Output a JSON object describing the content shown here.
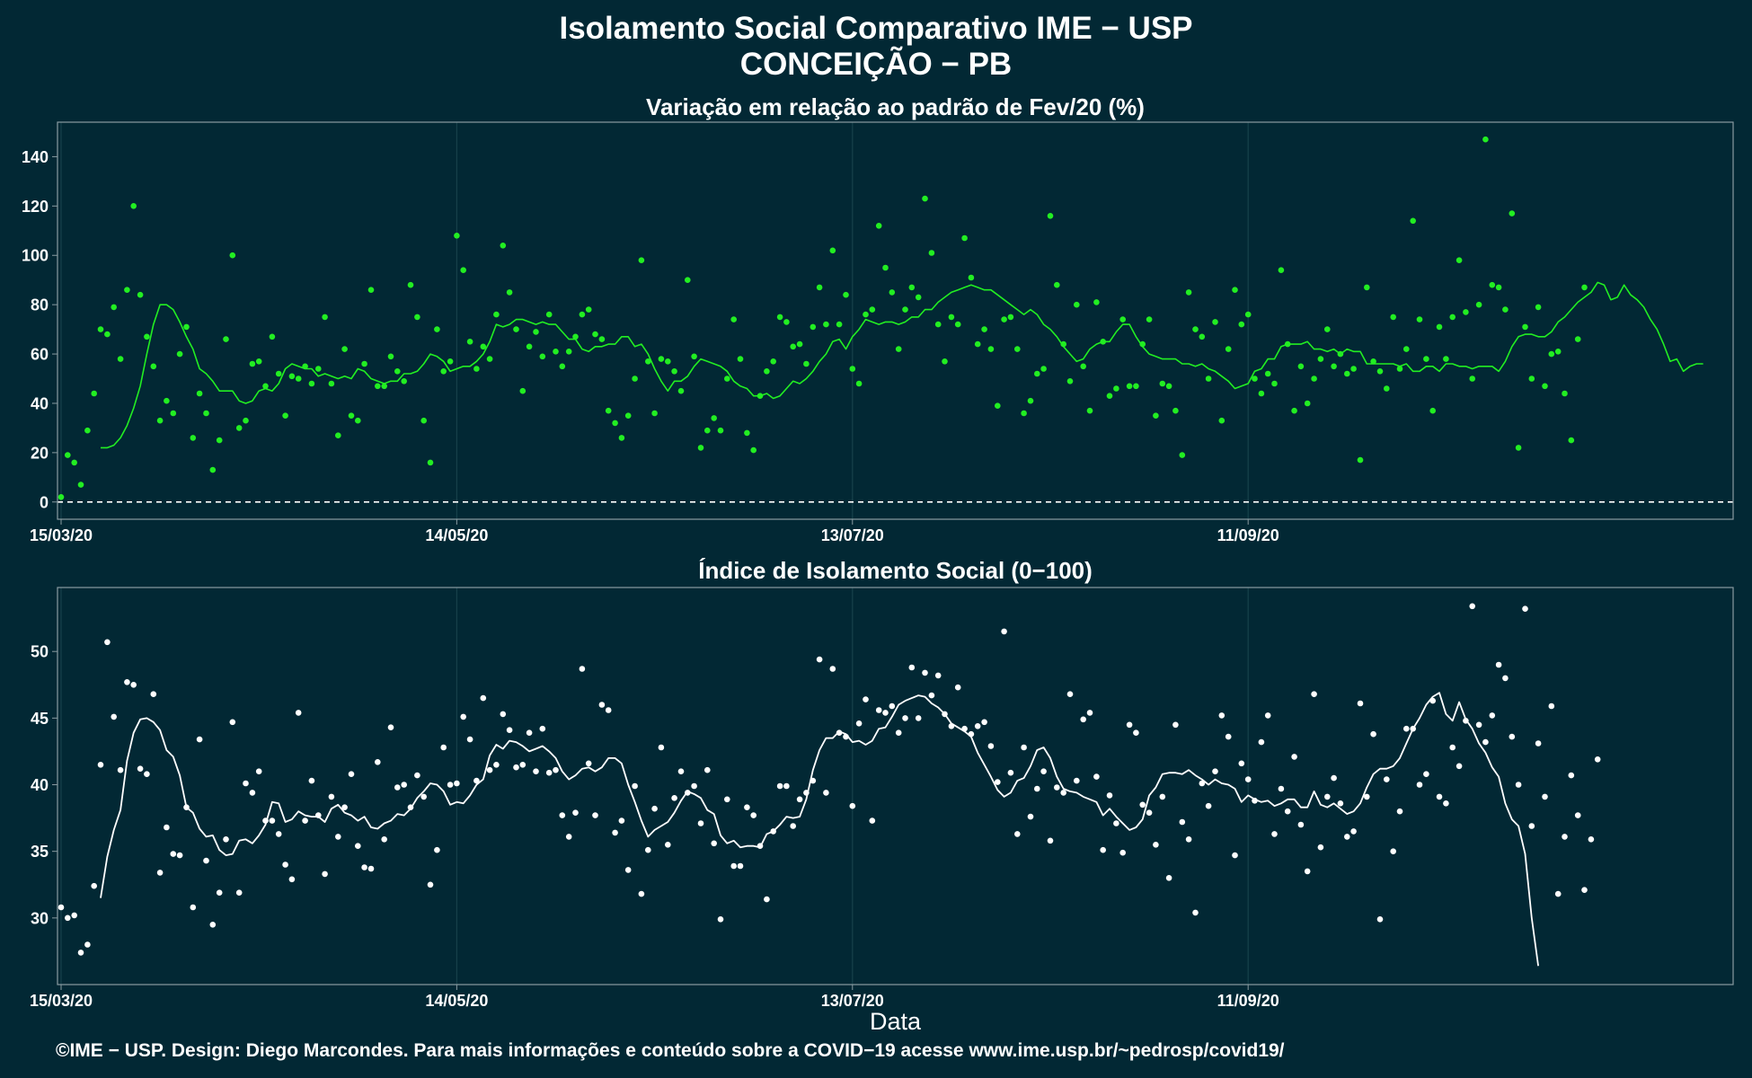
{
  "figure": {
    "title": "Isolamento Social Comparativo IME − USP",
    "subtitle": "CONCEIÇÃO − PB",
    "xlabel": "Data",
    "footer": "©IME − USP. Design: Diego Marcondes. Para mais informações e conteúdo sobre a COVID−19 acesse www.ime.usp.br/~pedrosp/covid19/",
    "colors": {
      "background": "#022834",
      "panel_border": "#8a9ba1",
      "grid": "#17414b",
      "series_top": "#22ee22",
      "series_bottom": "#ffffff"
    }
  },
  "chart_data": [
    {
      "type": "scatter",
      "title": "Variação em relação ao padrão de Fev/20 (%)",
      "x_start": "15/03/20",
      "x_end": "23/11/20",
      "xticks": [
        "15/03/20",
        "14/05/20",
        "13/07/20",
        "11/09/20"
      ],
      "yticks": [
        0,
        20,
        40,
        60,
        80,
        100,
        120,
        140
      ],
      "ylim": [
        -7,
        154
      ],
      "reference_line": 0,
      "grid": true,
      "points": [
        2,
        19,
        16,
        7,
        29,
        44,
        70,
        68,
        79,
        58,
        86,
        120,
        84,
        67,
        55,
        33,
        41,
        36,
        60,
        71,
        26,
        44,
        36,
        13,
        25,
        66,
        100,
        30,
        33,
        56,
        57,
        47,
        67,
        52,
        35,
        51,
        50,
        55,
        48,
        54,
        75,
        48,
        27,
        62,
        35,
        33,
        56,
        86,
        47,
        47,
        59,
        53,
        49,
        88,
        75,
        33,
        16,
        70,
        53,
        57,
        108,
        94,
        65,
        54,
        63,
        58,
        76,
        104,
        85,
        70,
        45,
        63,
        69,
        59,
        76,
        61,
        55,
        61,
        67,
        76,
        78,
        68,
        66,
        37,
        32,
        26,
        35,
        50,
        98,
        57,
        36,
        58,
        57,
        53,
        45,
        90,
        59,
        22,
        29,
        34,
        29,
        50,
        74,
        58,
        28,
        21,
        43,
        53,
        57,
        75,
        73,
        63,
        64,
        56,
        71,
        87,
        72,
        102,
        72,
        84,
        54,
        48,
        76,
        78,
        112,
        95,
        85,
        62,
        78,
        87,
        83,
        123,
        101,
        72,
        57,
        75,
        72,
        107,
        91,
        64,
        70,
        62,
        39,
        74,
        75,
        62,
        36,
        41,
        52,
        54,
        116,
        88,
        64,
        49,
        80,
        55,
        37,
        81,
        65,
        43,
        46,
        74,
        47,
        47,
        64,
        74,
        35,
        48,
        47,
        37,
        19,
        85,
        70,
        67,
        50,
        73,
        33,
        62,
        86,
        72,
        76,
        50,
        44,
        52,
        48,
        94,
        64,
        37,
        55,
        40,
        50,
        58,
        70,
        55,
        60,
        52,
        54,
        17,
        87,
        57,
        53,
        46,
        75,
        54,
        62,
        114,
        74,
        58,
        37,
        71,
        58,
        75,
        98,
        77,
        50,
        80,
        147,
        88,
        87,
        78,
        117,
        22,
        71,
        50,
        79,
        47,
        60,
        61,
        44,
        25,
        66,
        87
      ],
      "moving_average": [
        22,
        22,
        23,
        26,
        31,
        38,
        47,
        60,
        72,
        80,
        80,
        78,
        73,
        67,
        62,
        54,
        52,
        49,
        45,
        45,
        45,
        41,
        40,
        41,
        45,
        46,
        45,
        48,
        54,
        56,
        55,
        54,
        54,
        51,
        52,
        51,
        50,
        51,
        50,
        54,
        53,
        50,
        49,
        48,
        49,
        49,
        52,
        52,
        53,
        56,
        60,
        59,
        57,
        53,
        54,
        55,
        55,
        57,
        60,
        65,
        72,
        71,
        72,
        74,
        74,
        73,
        72,
        73,
        72,
        72,
        69,
        66,
        66,
        62,
        61,
        63,
        63,
        64,
        64,
        67,
        67,
        63,
        64,
        60,
        54,
        49,
        45,
        49,
        49,
        51,
        55,
        58,
        57,
        56,
        55,
        53,
        49,
        47,
        46,
        43,
        43,
        44,
        42,
        43,
        46,
        49,
        48,
        50,
        53,
        57,
        60,
        65,
        66,
        62,
        67,
        70,
        74,
        73,
        72,
        73,
        73,
        72,
        73,
        75,
        75,
        78,
        78,
        81,
        83,
        85,
        86,
        87,
        88,
        87,
        86,
        86,
        84,
        82,
        80,
        78,
        76,
        78,
        76,
        72,
        70,
        67,
        63,
        60,
        57,
        58,
        62,
        64,
        65,
        65,
        69,
        72,
        72,
        67,
        63,
        60,
        59,
        58,
        58,
        58,
        56,
        56,
        55,
        56,
        54,
        53,
        51,
        49,
        46,
        47,
        48,
        53,
        54,
        58,
        58,
        63,
        64,
        64,
        64,
        65,
        62,
        62,
        61,
        62,
        60,
        62,
        61,
        61,
        56,
        56,
        56,
        56,
        56,
        55,
        56,
        53,
        53,
        55,
        55,
        53,
        56,
        56,
        55,
        55,
        54,
        55,
        55,
        55,
        53,
        57,
        63,
        67,
        68,
        68,
        67,
        67,
        69,
        73,
        75,
        78,
        81,
        83,
        85,
        89,
        88,
        82,
        83,
        88,
        84,
        82,
        79,
        74,
        70,
        64,
        57,
        58,
        53,
        55,
        56,
        56
      ]
    },
    {
      "type": "scatter",
      "title": "Índice de Isolamento Social (0−100)",
      "x_start": "15/03/20",
      "x_end": "23/11/20",
      "xticks": [
        "15/03/20",
        "14/05/20",
        "13/07/20",
        "11/09/20"
      ],
      "yticks": [
        30,
        35,
        40,
        45,
        50
      ],
      "ylim": [
        25.0,
        54.8
      ],
      "grid": true,
      "points": [
        30.8,
        30.0,
        30.2,
        27.4,
        28.0,
        32.4,
        41.5,
        50.7,
        45.1,
        41.1,
        47.7,
        47.5,
        41.2,
        40.8,
        46.8,
        33.4,
        36.8,
        34.8,
        34.7,
        38.3,
        30.8,
        43.4,
        34.3,
        29.5,
        31.9,
        35.9,
        44.7,
        31.9,
        40.1,
        39.4,
        41.0,
        37.3,
        37.3,
        36.3,
        34.0,
        32.9,
        45.4,
        37.3,
        40.3,
        37.7,
        33.3,
        39.1,
        36.1,
        38.3,
        40.8,
        35.4,
        33.8,
        33.7,
        41.7,
        35.9,
        44.3,
        39.8,
        40.0,
        38.3,
        40.7,
        39.1,
        32.5,
        35.1,
        42.8,
        40.0,
        40.1,
        45.1,
        43.4,
        40.3,
        46.5,
        41.1,
        41.5,
        45.3,
        44.1,
        41.3,
        41.5,
        43.9,
        41.0,
        44.2,
        40.9,
        41.1,
        37.7,
        36.1,
        37.9,
        48.7,
        41.6,
        37.7,
        46.0,
        45.6,
        36.4,
        37.3,
        33.6,
        39.9,
        31.8,
        35.1,
        38.2,
        42.8,
        35.5,
        39.0,
        41.0,
        39.4,
        39.9,
        37.1,
        41.1,
        35.6,
        29.9,
        38.9,
        33.9,
        33.9,
        38.3,
        37.7,
        35.4,
        31.4,
        36.5,
        39.9,
        39.9,
        36.9,
        38.9,
        39.4,
        40.3,
        49.4,
        39.4,
        48.7,
        43.9,
        43.6,
        38.4,
        44.6,
        46.4,
        37.3,
        45.6,
        45.4,
        45.9,
        43.9,
        45.0,
        48.8,
        45.0,
        48.4,
        46.7,
        48.2,
        45.3,
        44.4,
        47.3,
        44.2,
        43.8,
        44.4,
        44.7,
        42.9,
        40.2,
        51.5,
        40.9,
        36.3,
        42.8,
        37.6,
        39.7,
        41.0,
        35.8,
        39.8,
        39.4,
        46.8,
        40.3,
        44.9,
        45.4,
        40.6,
        35.1,
        39.2,
        37.1,
        34.9,
        44.5,
        43.9,
        38.5,
        37.9,
        35.5,
        39.1,
        33.0,
        44.5,
        37.2,
        35.9,
        30.4,
        40.1,
        38.4,
        41.0,
        45.2,
        43.6,
        34.7,
        41.6,
        40.4,
        38.8,
        43.2,
        45.2,
        36.3,
        39.7,
        38.0,
        42.1,
        37.0,
        33.5,
        46.8,
        35.3,
        39.1,
        40.5,
        38.6,
        36.1,
        36.5,
        46.1,
        39.1,
        43.8,
        29.9,
        40.4,
        35.0,
        38.0,
        44.2,
        44.2,
        40.0,
        40.8,
        46.3,
        39.1,
        38.6,
        42.8,
        41.4,
        44.8,
        53.4,
        44.5,
        43.2,
        45.2,
        49.0,
        48.0,
        43.6,
        40.0,
        53.2,
        36.9,
        43.1,
        39.1,
        45.9,
        31.8,
        36.1,
        40.7,
        37.7,
        32.1,
        35.9,
        41.9
      ],
      "moving_average": [
        31.5,
        34.6,
        36.6,
        38.1,
        41.8,
        43.9,
        44.9,
        45.0,
        44.7,
        44.1,
        42.6,
        42.1,
        40.7,
        38.3,
        37.9,
        36.7,
        36.1,
        36.2,
        35.1,
        34.7,
        34.8,
        35.8,
        35.9,
        35.6,
        36.2,
        37.0,
        38.7,
        38.6,
        37.2,
        37.4,
        38.0,
        37.7,
        37.6,
        37.6,
        37.2,
        38.2,
        38.5,
        37.9,
        37.7,
        37.3,
        37.6,
        36.8,
        36.7,
        37.1,
        37.3,
        37.8,
        37.7,
        38.2,
        39.0,
        39.5,
        40.1,
        40.0,
        39.5,
        38.5,
        38.7,
        38.6,
        39.2,
        40.0,
        40.4,
        42.2,
        43.0,
        42.7,
        43.3,
        43.2,
        42.9,
        42.5,
        42.7,
        42.9,
        42.5,
        42.0,
        41.0,
        40.4,
        40.7,
        41.2,
        41.3,
        41.0,
        41.3,
        42.0,
        42.0,
        41.6,
        40.0,
        38.7,
        37.3,
        36.1,
        36.6,
        36.9,
        37.2,
        37.9,
        38.8,
        39.5,
        39.3,
        39.0,
        38.1,
        37.8,
        36.2,
        35.6,
        35.8,
        35.3,
        35.4,
        35.4,
        35.3,
        36.3,
        36.5,
        37.0,
        37.6,
        37.5,
        37.6,
        38.9,
        41.1,
        42.6,
        43.5,
        43.5,
        44.0,
        43.8,
        43.2,
        43.3,
        43.0,
        43.3,
        44.2,
        44.3,
        45.1,
        46.0,
        46.3,
        46.5,
        46.7,
        46.6,
        46.1,
        45.8,
        45.3,
        44.6,
        44.3,
        44.0,
        43.6,
        42.4,
        41.5,
        40.6,
        39.6,
        39.1,
        39.4,
        40.3,
        40.5,
        41.4,
        42.6,
        42.8,
        42.0,
        40.6,
        39.7,
        39.5,
        39.4,
        39.1,
        38.9,
        38.7,
        37.7,
        38.2,
        37.6,
        37.1,
        36.6,
        36.8,
        37.4,
        39.2,
        39.8,
        40.8,
        40.9,
        40.9,
        40.8,
        41.1,
        40.7,
        40.4,
        40.0,
        40.4,
        40.1,
        40.0,
        39.7,
        38.7,
        39.2,
        38.9,
        38.7,
        38.8,
        38.4,
        38.6,
        38.9,
        38.9,
        38.3,
        38.3,
        39.5,
        38.5,
        38.3,
        38.6,
        38.2,
        37.8,
        38.0,
        38.6,
        39.8,
        40.8,
        41.2,
        41.2,
        41.4,
        42.0,
        43.1,
        44.2,
        45.0,
        46.0,
        46.6,
        46.9,
        45.3,
        44.8,
        46.2,
        44.9,
        44.2,
        43.1,
        42.4,
        41.3,
        40.6,
        38.6,
        37.4,
        36.9,
        34.8,
        30.0,
        26.4
      ]
    }
  ]
}
